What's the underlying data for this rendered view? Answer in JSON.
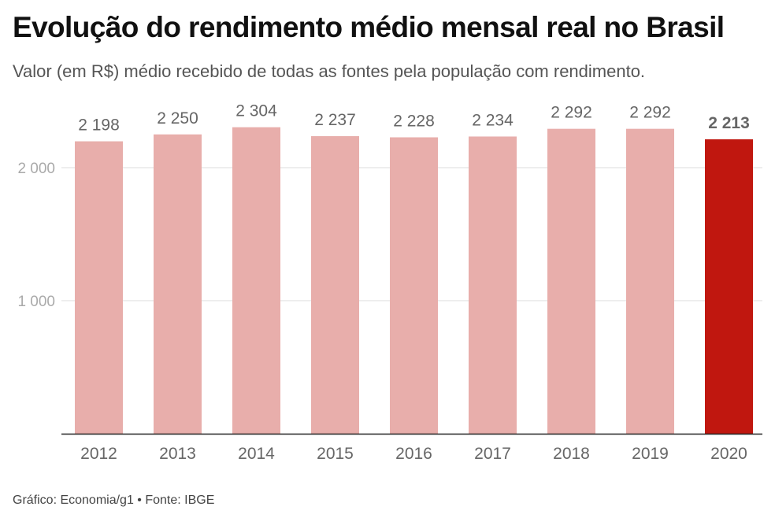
{
  "title": "Evolução do rendimento médio mensal real no Brasil",
  "subtitle": "Valor (em R$) médio recebido de todas as fontes pela população com rendimento.",
  "source": "Gráfico: Economia/g1 • Fonte: IBGE",
  "colors": {
    "bar": "#e8aeab",
    "highlight": "#c0170f",
    "grid": "#dddddd",
    "axis": "#222222",
    "tick_text": "#aaaaaa",
    "label_text": "#666666",
    "category_text": "#666666"
  },
  "chart_data": {
    "type": "bar",
    "title": "Evolução do rendimento médio mensal real no Brasil",
    "categories": [
      "2012",
      "2013",
      "2014",
      "2015",
      "2016",
      "2017",
      "2018",
      "2019",
      "2020"
    ],
    "values": [
      2198,
      2250,
      2304,
      2237,
      2228,
      2234,
      2292,
      2292,
      2213
    ],
    "data_labels": [
      "2 198",
      "2 250",
      "2 304",
      "2 237",
      "2 228",
      "2 234",
      "2 292",
      "2 292",
      "2 213"
    ],
    "highlight_index": 8,
    "yticks": [
      1000,
      2000
    ],
    "ytick_labels": [
      "1 000",
      "2 000"
    ],
    "ylim": [
      0,
      2300
    ],
    "grid": true,
    "xlabel": "",
    "ylabel": ""
  }
}
